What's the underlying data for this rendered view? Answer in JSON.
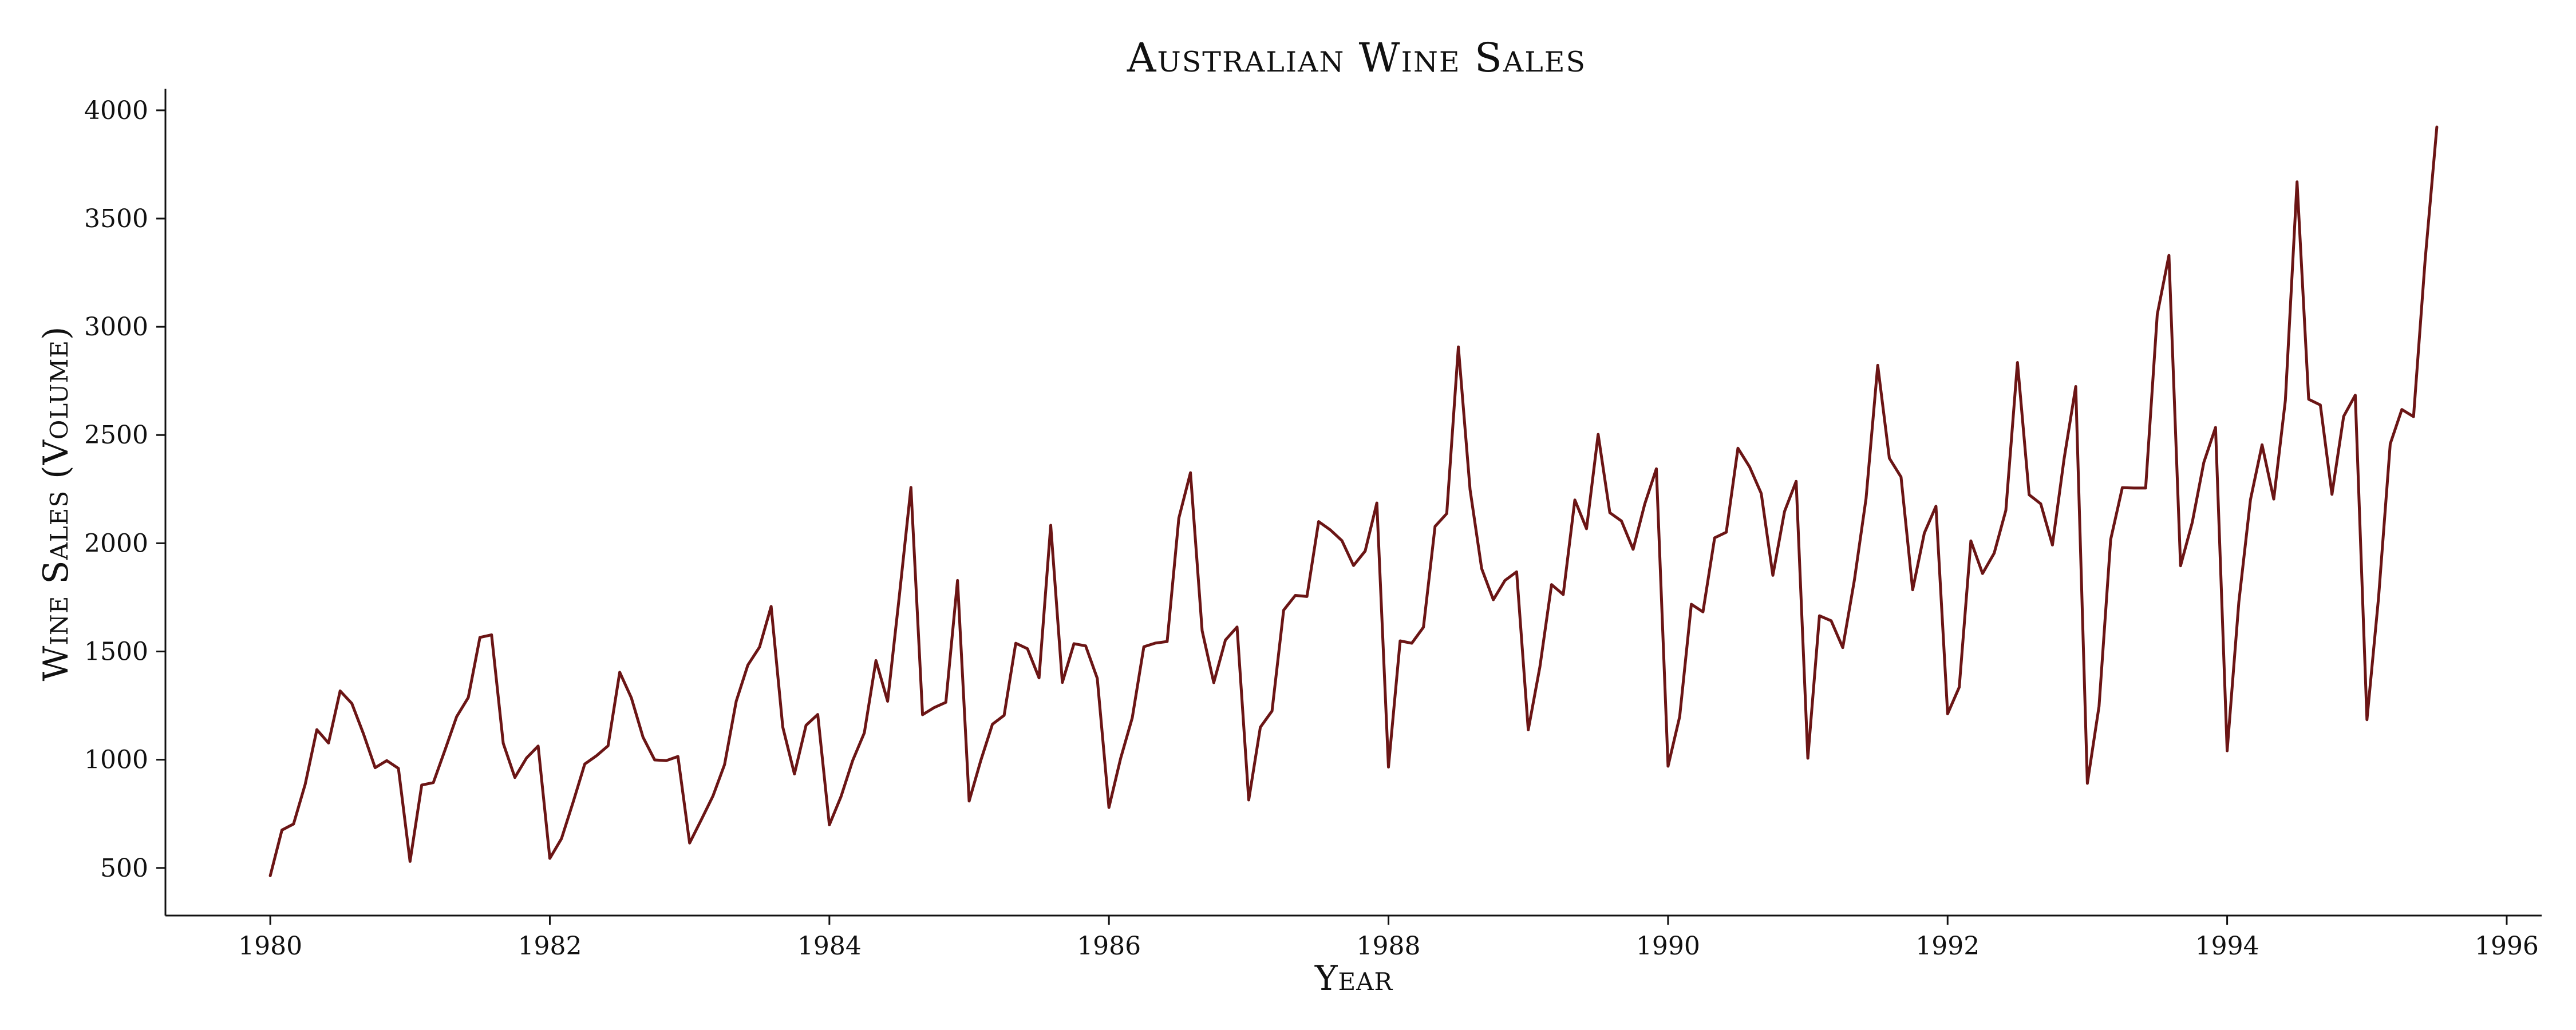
{
  "chart_data": {
    "type": "line",
    "title": "Australian Wine Sales",
    "xlabel": "Year",
    "ylabel": "Wine Sales (Volume)",
    "x_start": "1980-01",
    "x_frequency": "monthly",
    "xlim": [
      1979.25,
      1996.25
    ],
    "ylim": [
      280,
      4100
    ],
    "x_ticks": [
      1980,
      1982,
      1984,
      1986,
      1988,
      1990,
      1992,
      1994,
      1996
    ],
    "y_ticks": [
      500,
      1000,
      1500,
      2000,
      2500,
      3000,
      3500,
      4000
    ],
    "grid": false,
    "legend": "none",
    "color": "#6b1515",
    "series": [
      {
        "values": [
          464,
          675,
          703,
          887,
          1139,
          1077,
          1318,
          1260,
          1120,
          963,
          996,
          960,
          530,
          883,
          894,
          1045,
          1199,
          1287,
          1565,
          1577,
          1076,
          918,
          1008,
          1063,
          544,
          635,
          804,
          980,
          1018,
          1064,
          1404,
          1286,
          1104,
          999,
          996,
          1015,
          615,
          722,
          832,
          977,
          1270,
          1437,
          1520,
          1708,
          1151,
          934,
          1159,
          1209,
          699,
          830,
          996,
          1124,
          1458,
          1270,
          1753,
          2258,
          1208,
          1241,
          1265,
          1828,
          809,
          997,
          1164,
          1205,
          1538,
          1513,
          1378,
          2083,
          1357,
          1536,
          1526,
          1376,
          779,
          1005,
          1193,
          1522,
          1539,
          1546,
          2116,
          2326,
          1596,
          1356,
          1553,
          1613,
          814,
          1150,
          1225,
          1691,
          1759,
          1754,
          2100,
          2062,
          2012,
          1897,
          1964,
          2186,
          966,
          1549,
          1538,
          1612,
          2078,
          2137,
          2907,
          2249,
          1883,
          1739,
          1828,
          1868,
          1138,
          1430,
          1809,
          1763,
          2200,
          2067,
          2503,
          2141,
          2103,
          1972,
          2181,
          2344,
          970,
          1199,
          1718,
          1683,
          2025,
          2051,
          2439,
          2353,
          2230,
          1852,
          2147,
          2286,
          1007,
          1665,
          1642,
          1518,
          1831,
          2207,
          2822,
          2393,
          2306,
          1785,
          2047,
          2171,
          1212,
          1335,
          2011,
          1860,
          1954,
          2152,
          2835,
          2224,
          2182,
          1992,
          2389,
          2724,
          891,
          1247,
          2017,
          2257,
          2255,
          2255,
          3057,
          3330,
          1896,
          2096,
          2374,
          2535,
          1041,
          1728,
          2201,
          2455,
          2204,
          2660,
          3670,
          2665,
          2639,
          2226,
          2586,
          2684,
          1185,
          1749,
          2459,
          2618,
          2585,
          3310,
          3923
        ]
      }
    ]
  }
}
